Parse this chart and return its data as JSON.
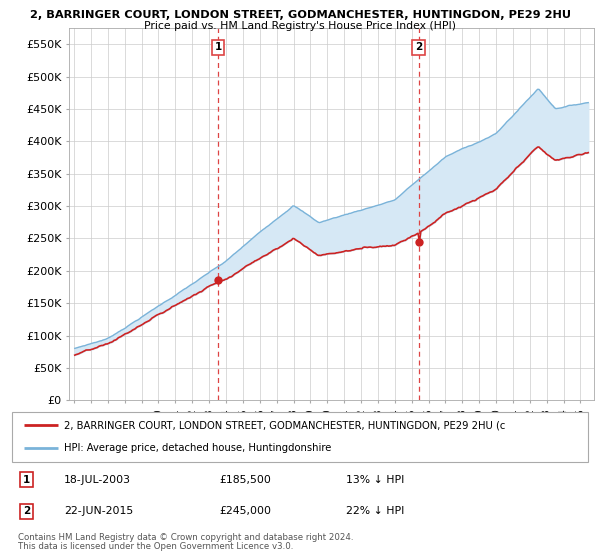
{
  "title_line1": "2, BARRINGER COURT, LONDON STREET, GODMANCHESTER, HUNTINGDON, PE29 2HU",
  "title_line2": "Price paid vs. HM Land Registry's House Price Index (HPI)",
  "ylim": [
    0,
    575000
  ],
  "yticks": [
    0,
    50000,
    100000,
    150000,
    200000,
    250000,
    300000,
    350000,
    400000,
    450000,
    500000,
    550000
  ],
  "ytick_labels": [
    "£0",
    "£50K",
    "£100K",
    "£150K",
    "£200K",
    "£250K",
    "£300K",
    "£350K",
    "£400K",
    "£450K",
    "£500K",
    "£550K"
  ],
  "hpi_color": "#7ab3d9",
  "price_color": "#cc2222",
  "fill_color": "#d6e8f5",
  "marker1_x": 2003.542,
  "marker1_y": 185500,
  "marker2_x": 2015.417,
  "marker2_y": 245000,
  "legend_line1": "2, BARRINGER COURT, LONDON STREET, GODMANCHESTER, HUNTINGDON, PE29 2HU (c",
  "legend_line2": "HPI: Average price, detached house, Huntingdonshire",
  "table_row1": [
    "1",
    "18-JUL-2003",
    "£185,500",
    "13% ↓ HPI"
  ],
  "table_row2": [
    "2",
    "22-JUN-2015",
    "£245,000",
    "22% ↓ HPI"
  ],
  "footnote1": "Contains HM Land Registry data © Crown copyright and database right 2024.",
  "footnote2": "This data is licensed under the Open Government Licence v3.0.",
  "grid_color": "#cccccc",
  "vline_color": "#dd4444",
  "xlim_left": 1994.7,
  "xlim_right": 2025.8
}
